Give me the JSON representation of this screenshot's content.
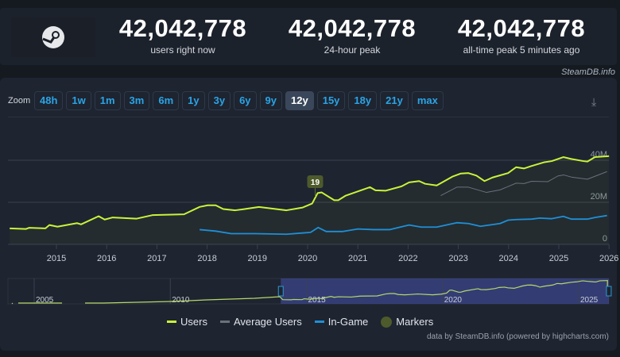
{
  "stats": [
    {
      "value": "42,042,778",
      "label": "users right now"
    },
    {
      "value": "42,042,778",
      "label": "24-hour peak"
    },
    {
      "value": "42,042,778",
      "label": "all-time peak 5 minutes ago"
    }
  ],
  "credit": "SteamDB.info",
  "zoom": {
    "label": "Zoom",
    "buttons": [
      "48h",
      "1w",
      "1m",
      "3m",
      "6m",
      "1y",
      "3y",
      "6y",
      "9y",
      "12y",
      "15y",
      "18y",
      "21y",
      "max"
    ],
    "active": "12y"
  },
  "colors": {
    "users": "#c9f33a",
    "average": "#6b717a",
    "ingame": "#1f8fd6",
    "marker": "#4d5a2b"
  },
  "chart_data": {
    "type": "line",
    "xlim": [
      2014.0,
      2026.05
    ],
    "ylim": [
      0,
      50
    ],
    "x_ticks": [
      "2015",
      "2016",
      "2017",
      "2018",
      "2019",
      "2020",
      "2021",
      "2022",
      "2023",
      "2024",
      "2025",
      "2026"
    ],
    "y_ticks": [
      {
        "v": 0,
        "label": "0"
      },
      {
        "v": 20,
        "label": "20M"
      },
      {
        "v": 40,
        "label": "40M"
      }
    ],
    "grid": true,
    "legend_position": "bottom",
    "series": [
      {
        "name": "Users",
        "points": [
          [
            2014.07,
            7.6
          ],
          [
            2014.39,
            7.3
          ],
          [
            2014.46,
            7.9
          ],
          [
            2014.78,
            7.6
          ],
          [
            2014.86,
            9.2
          ],
          [
            2015.02,
            8.4
          ],
          [
            2015.41,
            10.1
          ],
          [
            2015.49,
            9.5
          ],
          [
            2015.84,
            13.4
          ],
          [
            2015.96,
            11.8
          ],
          [
            2016.12,
            12.8
          ],
          [
            2016.59,
            12.2
          ],
          [
            2016.91,
            13.9
          ],
          [
            2017.54,
            14.3
          ],
          [
            2017.85,
            17.8
          ],
          [
            2018.01,
            18.6
          ],
          [
            2018.17,
            18.6
          ],
          [
            2018.32,
            16.8
          ],
          [
            2018.56,
            16.2
          ],
          [
            2018.72,
            16.7
          ],
          [
            2019.03,
            17.8
          ],
          [
            2019.58,
            16.2
          ],
          [
            2019.9,
            17.5
          ],
          [
            2020.09,
            19.4
          ],
          [
            2020.2,
            24.4
          ],
          [
            2020.28,
            24.7
          ],
          [
            2020.53,
            21.0
          ],
          [
            2020.61,
            21.0
          ],
          [
            2020.76,
            23.2
          ],
          [
            2021.24,
            27.2
          ],
          [
            2021.35,
            25.7
          ],
          [
            2021.55,
            25.5
          ],
          [
            2021.87,
            27.6
          ],
          [
            2022.02,
            29.5
          ],
          [
            2022.22,
            30.1
          ],
          [
            2022.34,
            28.8
          ],
          [
            2022.57,
            28.0
          ],
          [
            2022.89,
            32.3
          ],
          [
            2023.05,
            33.7
          ],
          [
            2023.2,
            33.9
          ],
          [
            2023.36,
            32.7
          ],
          [
            2023.52,
            30.1
          ],
          [
            2023.68,
            31.8
          ],
          [
            2023.99,
            33.9
          ],
          [
            2024.15,
            36.7
          ],
          [
            2024.31,
            36.1
          ],
          [
            2024.46,
            37.3
          ],
          [
            2024.7,
            39.0
          ],
          [
            2024.86,
            39.6
          ],
          [
            2025.09,
            41.5
          ],
          [
            2025.25,
            40.6
          ],
          [
            2025.49,
            39.6
          ],
          [
            2025.57,
            39.4
          ],
          [
            2025.72,
            41.5
          ],
          [
            2025.96,
            41.9
          ],
          [
            2026.0,
            42.0
          ]
        ]
      },
      {
        "name": "Average Users",
        "points": [
          [
            2022.65,
            23.2
          ],
          [
            2022.97,
            27.2
          ],
          [
            2023.2,
            27.2
          ],
          [
            2023.56,
            24.7
          ],
          [
            2023.83,
            25.9
          ],
          [
            2024.15,
            29.1
          ],
          [
            2024.31,
            28.9
          ],
          [
            2024.46,
            30.0
          ],
          [
            2024.78,
            29.8
          ],
          [
            2024.98,
            32.5
          ],
          [
            2025.1,
            33.0
          ],
          [
            2025.25,
            32.0
          ],
          [
            2025.57,
            31.0
          ],
          [
            2025.96,
            34.6
          ]
        ]
      },
      {
        "name": "In-Game",
        "points": [
          [
            2017.85,
            7.0
          ],
          [
            2018.17,
            6.3
          ],
          [
            2018.48,
            5.1
          ],
          [
            2018.95,
            5.1
          ],
          [
            2019.58,
            4.8
          ],
          [
            2020.06,
            5.7
          ],
          [
            2020.21,
            8.0
          ],
          [
            2020.37,
            6.1
          ],
          [
            2020.69,
            6.1
          ],
          [
            2021.0,
            7.3
          ],
          [
            2021.31,
            7.0
          ],
          [
            2021.63,
            7.0
          ],
          [
            2022.02,
            9.2
          ],
          [
            2022.26,
            8.2
          ],
          [
            2022.57,
            8.2
          ],
          [
            2022.97,
            10.3
          ],
          [
            2023.2,
            9.9
          ],
          [
            2023.44,
            8.6
          ],
          [
            2023.83,
            9.9
          ],
          [
            2023.99,
            11.5
          ],
          [
            2024.15,
            11.8
          ],
          [
            2024.46,
            12.0
          ],
          [
            2024.62,
            12.5
          ],
          [
            2024.86,
            12.2
          ],
          [
            2025.09,
            13.3
          ],
          [
            2025.25,
            12.0
          ],
          [
            2025.57,
            12.0
          ],
          [
            2025.72,
            12.8
          ],
          [
            2025.96,
            13.7
          ]
        ]
      }
    ],
    "markers": [
      {
        "x": 2020.15,
        "label": "19"
      }
    ],
    "navigator": {
      "x_ticks": [
        "2005",
        "2010",
        "2015",
        "2020",
        "2025"
      ],
      "selection": [
        2014.0,
        2026.05
      ]
    }
  },
  "legend": [
    "Users",
    "Average Users",
    "In-Game",
    "Markers"
  ],
  "footer": "data by SteamDB.info (powered by highcharts.com)"
}
